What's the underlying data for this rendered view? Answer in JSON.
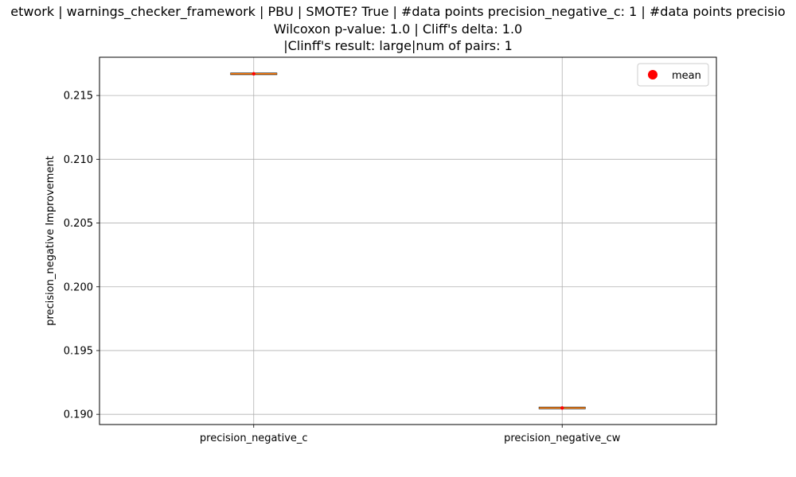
{
  "chart_data": {
    "type": "box",
    "title_lines": [
      "etwork | warnings_checker_framework | PBU | SMOTE? True | #data points precision_negative_c: 1 | #data points precisio",
      "Wilcoxon p-value: 1.0 | Cliff's delta: 1.0",
      "|Clinff's result: large|num of pairs: 1"
    ],
    "ylabel": "precision_negative Improvement",
    "xlabel": "",
    "categories": [
      "precision_negative_c",
      "precision_negative_cw"
    ],
    "values": [
      0.2167,
      0.1905
    ],
    "means": [
      0.2167,
      0.1905
    ],
    "ylim": [
      0.1892,
      0.218
    ],
    "yticks": [
      0.19,
      0.195,
      0.2,
      0.205,
      0.21,
      0.215
    ],
    "ytick_labels": [
      "0.190",
      "0.195",
      "0.200",
      "0.205",
      "0.210",
      "0.215"
    ],
    "grid": true,
    "legend": {
      "placement": "top-right",
      "entries": [
        {
          "label": "mean",
          "color": "#ff0000",
          "marker": "circle"
        }
      ]
    },
    "colors": {
      "box": "#000000",
      "median": "#ff7f0e",
      "mean": "#ff0000",
      "grid": "#b0b0b0"
    }
  }
}
